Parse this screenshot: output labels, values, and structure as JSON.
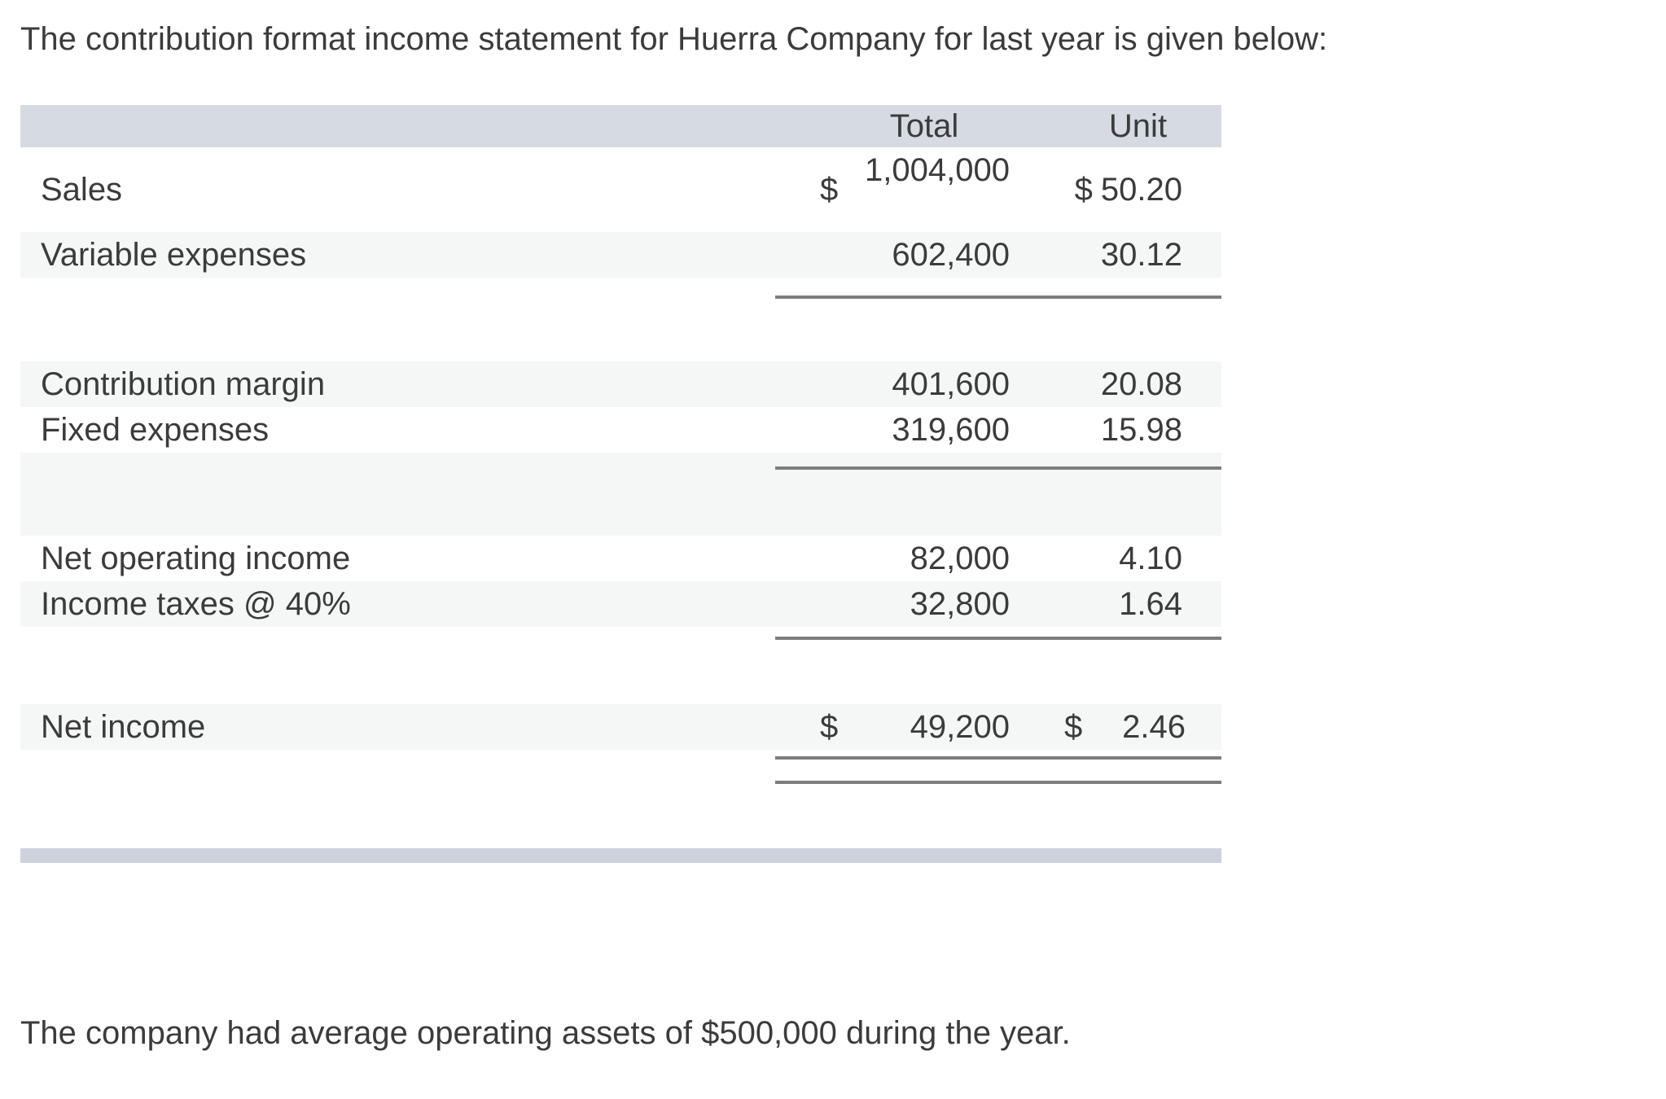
{
  "intro": "The contribution format income statement for Huerra Company for last year is given below:",
  "note": "The company had average operating assets of $500,000 during the year.",
  "colors": {
    "text": "#3b3b3b",
    "header_bg": "#d6dae3",
    "footer_bar_bg": "#ccd2de",
    "stripe_bg": "#f5f6f6",
    "rule": "#7d7d7d",
    "page_bg": "#ffffff"
  },
  "table": {
    "header": {
      "total": "Total",
      "unit": "Unit"
    },
    "rows": [
      {
        "label": "Sales",
        "currency": "$",
        "total": "1,004,000",
        "unit_currency": "$",
        "unit": "50.20"
      },
      {
        "label": "Variable expenses",
        "total": "602,400",
        "unit": "30.12"
      },
      {
        "label": "Contribution margin",
        "total": "401,600",
        "unit": "20.08"
      },
      {
        "label": "Fixed expenses",
        "total": "319,600",
        "unit": "15.98"
      },
      {
        "label": "Net operating income",
        "total": "82,000",
        "unit": "4.10"
      },
      {
        "label": "Income taxes @ 40%",
        "total": "32,800",
        "unit": "1.64"
      },
      {
        "label": "Net income",
        "currency": "$",
        "total": "49,200",
        "unit_currency": "$",
        "unit": "2.46"
      }
    ]
  }
}
